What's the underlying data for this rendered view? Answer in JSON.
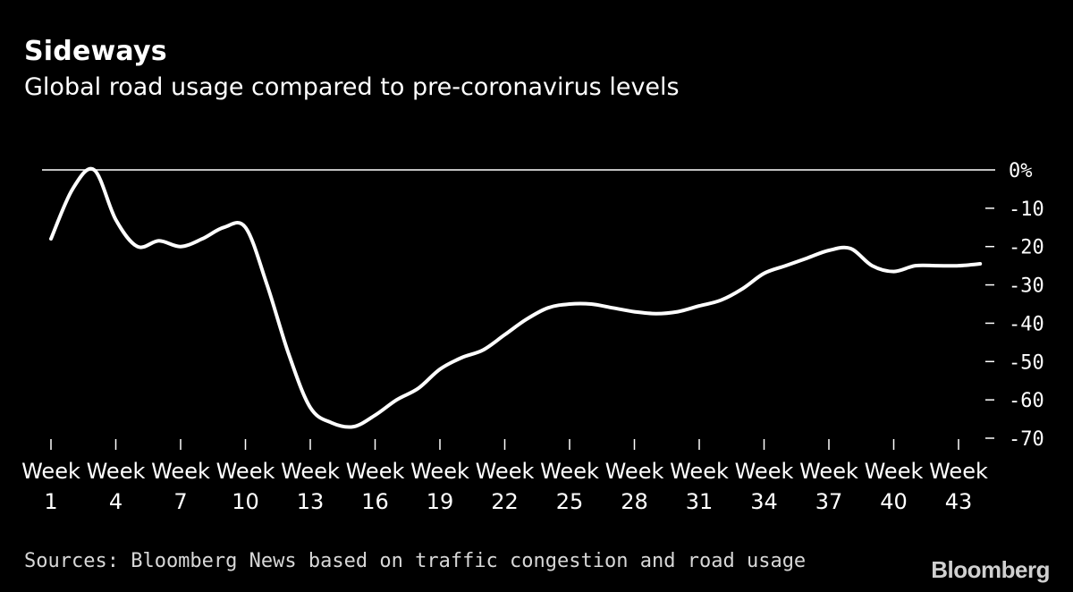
{
  "header": {
    "title": "Sideways",
    "subtitle": "Global road usage compared to pre-coronavirus levels"
  },
  "footer": {
    "source": "Sources: Bloomberg News based on traffic congestion and road usage",
    "brand": "Bloomberg"
  },
  "chart_data": {
    "type": "line",
    "title": "Sideways",
    "subtitle": "Global road usage compared to pre-coronavirus levels",
    "xlabel": "",
    "ylabel": "",
    "ylim": [
      -70,
      0
    ],
    "xlim": [
      1,
      44
    ],
    "grid": false,
    "y_ticks": [
      {
        "value": 0,
        "label": "0%"
      },
      {
        "value": -10,
        "label": "-10"
      },
      {
        "value": -20,
        "label": "-20"
      },
      {
        "value": -30,
        "label": "-30"
      },
      {
        "value": -40,
        "label": "-40"
      },
      {
        "value": -50,
        "label": "-50"
      },
      {
        "value": -60,
        "label": "-60"
      },
      {
        "value": -70,
        "label": "-70"
      }
    ],
    "x_ticks": [
      {
        "value": 1,
        "label": [
          "Week",
          "1"
        ]
      },
      {
        "value": 4,
        "label": [
          "Week",
          "4"
        ]
      },
      {
        "value": 7,
        "label": [
          "Week",
          "7"
        ]
      },
      {
        "value": 10,
        "label": [
          "Week",
          "10"
        ]
      },
      {
        "value": 13,
        "label": [
          "Week",
          "13"
        ]
      },
      {
        "value": 16,
        "label": [
          "Week",
          "16"
        ]
      },
      {
        "value": 19,
        "label": [
          "Week",
          "19"
        ]
      },
      {
        "value": 22,
        "label": [
          "Week",
          "22"
        ]
      },
      {
        "value": 25,
        "label": [
          "Week",
          "25"
        ]
      },
      {
        "value": 28,
        "label": [
          "Week",
          "28"
        ]
      },
      {
        "value": 31,
        "label": [
          "Week",
          "31"
        ]
      },
      {
        "value": 34,
        "label": [
          "Week",
          "34"
        ]
      },
      {
        "value": 37,
        "label": [
          "Week",
          "37"
        ]
      },
      {
        "value": 40,
        "label": [
          "Week",
          "40"
        ]
      },
      {
        "value": 43,
        "label": [
          "Week",
          "43"
        ]
      }
    ],
    "series": [
      {
        "color": "#ffffff",
        "points": [
          [
            1,
            -18
          ],
          [
            2,
            -5
          ],
          [
            3,
            0
          ],
          [
            4,
            -13
          ],
          [
            5,
            -20
          ],
          [
            6,
            -18.5
          ],
          [
            7,
            -20
          ],
          [
            8,
            -18
          ],
          [
            9,
            -15
          ],
          [
            10,
            -15
          ],
          [
            11,
            -30
          ],
          [
            12,
            -48
          ],
          [
            13,
            -62
          ],
          [
            14,
            -66
          ],
          [
            15,
            -67
          ],
          [
            16,
            -64
          ],
          [
            17,
            -60
          ],
          [
            18,
            -57
          ],
          [
            19,
            -52
          ],
          [
            20,
            -49
          ],
          [
            21,
            -47
          ],
          [
            22,
            -43
          ],
          [
            23,
            -39
          ],
          [
            24,
            -36
          ],
          [
            25,
            -35
          ],
          [
            26,
            -35
          ],
          [
            27,
            -36
          ],
          [
            28,
            -37
          ],
          [
            29,
            -37.5
          ],
          [
            30,
            -37
          ],
          [
            31,
            -35.5
          ],
          [
            32,
            -34
          ],
          [
            33,
            -31
          ],
          [
            34,
            -27
          ],
          [
            35,
            -25
          ],
          [
            36,
            -23
          ],
          [
            37,
            -21
          ],
          [
            38,
            -20.5
          ],
          [
            39,
            -25
          ],
          [
            40,
            -26.5
          ],
          [
            41,
            -25
          ],
          [
            42,
            -25
          ],
          [
            43,
            -25
          ],
          [
            44,
            -24.5
          ]
        ]
      }
    ],
    "reference_line": {
      "value": 0,
      "color": "#ffffff"
    }
  }
}
